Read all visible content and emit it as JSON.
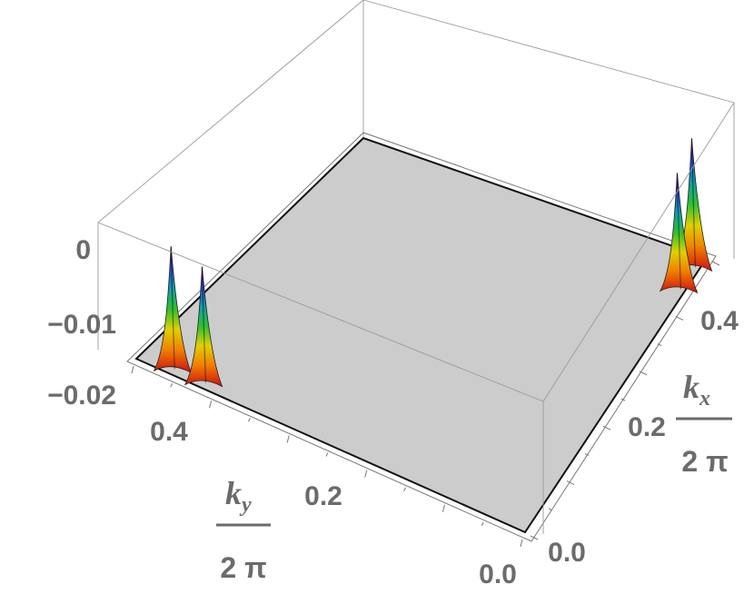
{
  "chart_data": {
    "type": "surface3d",
    "title": "",
    "xlabel": {
      "numerator": "k",
      "subscript": "x",
      "denominator": "2 π"
    },
    "ylabel": {
      "numerator": "k",
      "subscript": "y",
      "denominator": "2 π"
    },
    "zlabel": "",
    "x_ticks": [
      "0.0",
      "0.2",
      "0.4"
    ],
    "y_ticks": [
      "0.0",
      "0.2",
      "0.4"
    ],
    "z_ticks": [
      "0",
      "−0.01",
      "−0.02"
    ],
    "xlim": [
      0,
      0.5
    ],
    "ylim": [
      0,
      0.5
    ],
    "zlim": [
      -0.02,
      0.003
    ],
    "baseline_z": -0.02,
    "surface_color": "#cccccc",
    "peak_colormap": [
      "#d01010",
      "#f08000",
      "#e0d000",
      "#30c030",
      "#10a0a0",
      "#2050d0",
      "#8010d0"
    ],
    "peaks": [
      {
        "kx": 0.01,
        "ky": 0.46,
        "z": -0.001
      },
      {
        "kx": 0.01,
        "ky": 0.42,
        "z": -0.002
      },
      {
        "kx": 0.48,
        "ky": 0.01,
        "z": 0.0
      },
      {
        "kx": 0.44,
        "ky": 0.01,
        "z": -0.002
      }
    ]
  }
}
